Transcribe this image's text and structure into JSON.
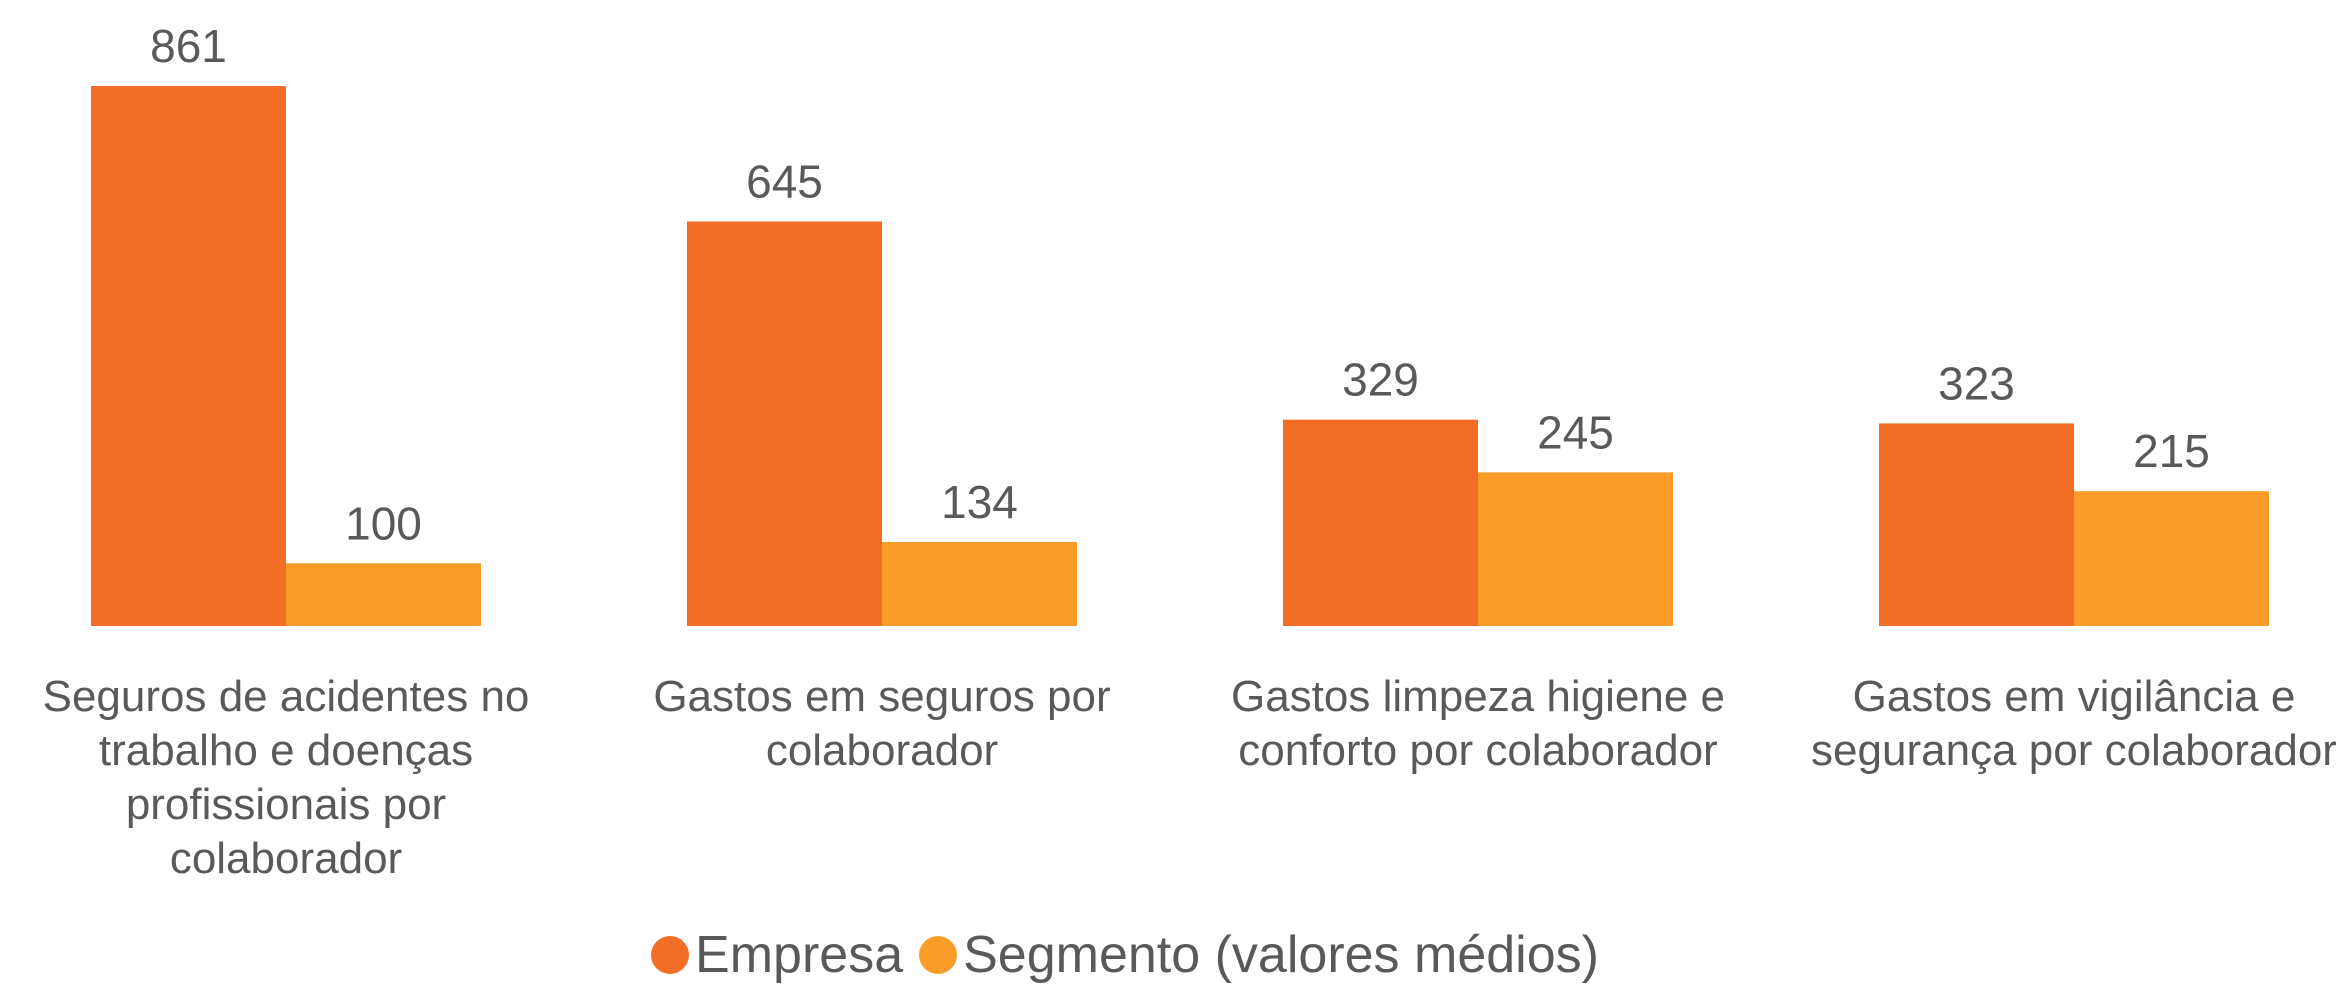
{
  "chart_data": {
    "type": "bar",
    "categories": [
      "Seguros de acidentes no trabalho e doenças profissionais por colaborador",
      "Gastos em seguros por colaborador",
      "Gastos limpeza higiene e conforto por colaborador",
      "Gastos em vigilância e segurança por colaborador"
    ],
    "series": [
      {
        "name": "Empresa",
        "color": "#f26e27",
        "values": [
          861,
          645,
          329,
          323
        ]
      },
      {
        "name": "Segmento (valores médios)",
        "color": "#f99d28",
        "values": [
          100,
          134,
          245,
          215
        ]
      }
    ],
    "legend": "bottom"
  }
}
